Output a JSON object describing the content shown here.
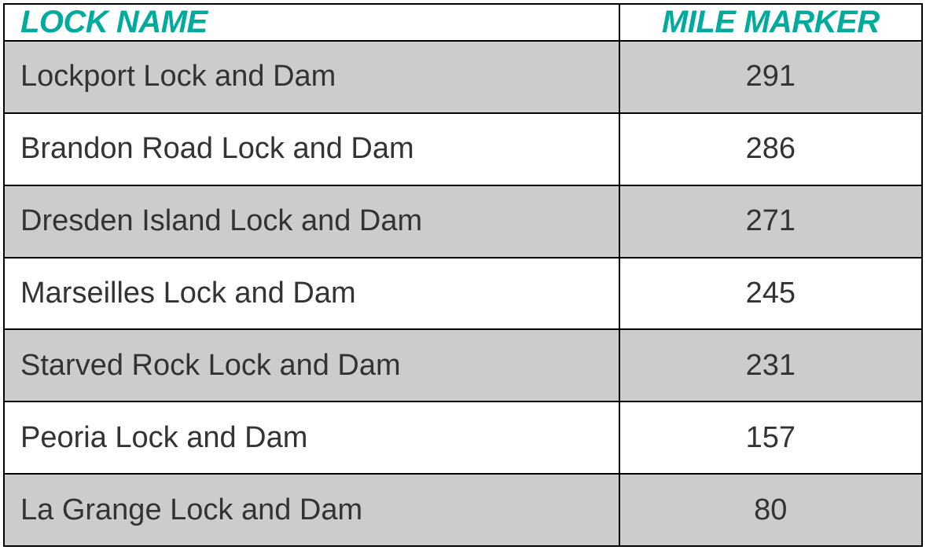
{
  "table": {
    "type": "table",
    "header_color": "#00ab9e",
    "header_fontsize": 40,
    "header_font_style": "italic",
    "header_font_weight": "900",
    "body_color": "#333333",
    "body_fontsize": 38,
    "body_font_weight": "400",
    "border_color": "#000000",
    "border_width": 2,
    "row_shade_color": "#cccccc",
    "row_plain_color": "#ffffff",
    "columns": [
      {
        "key": "name",
        "label": "LOCK NAME",
        "align": "left",
        "width_pct": 67
      },
      {
        "key": "mile",
        "label": "MILE MARKER",
        "align": "center",
        "width_pct": 33
      }
    ],
    "rows": [
      {
        "name": "Lockport Lock and Dam",
        "mile": "291",
        "shaded": true
      },
      {
        "name": "Brandon Road Lock and Dam",
        "mile": "286",
        "shaded": false
      },
      {
        "name": "Dresden Island Lock and Dam",
        "mile": "271",
        "shaded": true
      },
      {
        "name": "Marseilles Lock and Dam",
        "mile": "245",
        "shaded": false
      },
      {
        "name": "Starved Rock Lock and Dam",
        "mile": "231",
        "shaded": true
      },
      {
        "name": "Peoria Lock and Dam",
        "mile": "157",
        "shaded": false
      },
      {
        "name": "La Grange Lock and Dam",
        "mile": "80",
        "shaded": true
      }
    ]
  }
}
